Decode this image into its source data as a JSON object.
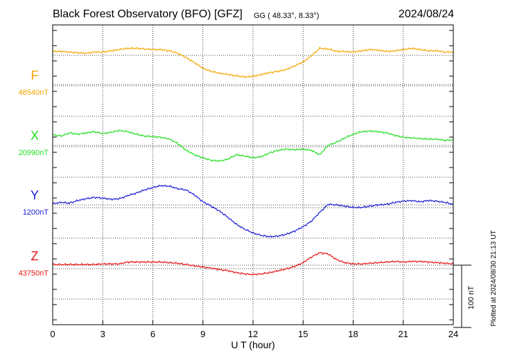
{
  "chart_data": {
    "type": "line",
    "title": "Black Forest Observatory (BFO)  [GFZ]",
    "subtitle": "GG ( 48.33°,   8.33°)",
    "date": "2024/08/24",
    "xlabel": "U T (hour)",
    "xlim": [
      0,
      24
    ],
    "x_ticks": [
      "0",
      "3",
      "6",
      "9",
      "12",
      "15",
      "18",
      "21",
      "24"
    ],
    "grid": true,
    "scale_bar_label": "100 nT",
    "scale_bar_nT": 100,
    "footer": "Plotted at 2024/08/30 21:13 UT",
    "series": [
      {
        "name": "F",
        "baseline_label": "48540nT",
        "baseline_nT": 48540,
        "color": "#f5a500",
        "x": [
          0,
          0.5,
          1,
          1.5,
          2,
          2.5,
          3,
          3.5,
          4,
          4.5,
          5,
          5.5,
          6,
          6.5,
          7,
          7.5,
          8,
          8.5,
          9,
          9.5,
          10,
          10.5,
          11,
          11.5,
          12,
          12.5,
          13,
          13.5,
          14,
          14.5,
          15,
          15.5,
          16,
          16.5,
          17,
          17.5,
          18,
          18.5,
          19,
          19.5,
          20,
          20.5,
          21,
          21.5,
          22,
          22.5,
          23,
          23.5,
          24
        ],
        "values": [
          48593,
          48593,
          48592,
          48591,
          48590,
          48592,
          48592,
          48594,
          48596,
          48598,
          48598,
          48597,
          48596,
          48596,
          48594,
          48590,
          48583,
          48575,
          48566,
          48561,
          48558,
          48556,
          48554,
          48552,
          48553,
          48556,
          48559,
          48561,
          48564,
          48570,
          48576,
          48586,
          48598,
          48597,
          48593,
          48593,
          48592,
          48594,
          48596,
          48595,
          48593,
          48594,
          48596,
          48598,
          48596,
          48594,
          48594,
          48592,
          48592
        ]
      },
      {
        "name": "X",
        "baseline_label": "20990nT",
        "baseline_nT": 20990,
        "color": "#22dd22",
        "x": [
          0,
          0.5,
          1,
          1.5,
          2,
          2.5,
          3,
          3.5,
          4,
          4.5,
          5,
          5.5,
          6,
          6.5,
          7,
          7.5,
          8,
          8.5,
          9,
          9.5,
          10,
          10.5,
          11,
          11.5,
          12,
          12.5,
          13,
          13.5,
          14,
          14.5,
          15,
          15.5,
          16,
          16.5,
          17,
          17.5,
          18,
          18.5,
          19,
          19.5,
          20,
          20.5,
          21,
          21.5,
          22,
          22.5,
          23,
          23.5,
          24
        ],
        "values": [
          21007,
          21005,
          21010,
          21008,
          21010,
          21012,
          21009,
          21011,
          21014,
          21012,
          21008,
          21005,
          21004,
          21003,
          21000,
          20993,
          20982,
          20975,
          20970,
          20966,
          20965,
          20968,
          20975,
          20973,
          20970,
          20972,
          20978,
          20982,
          20984,
          20983,
          20984,
          20982,
          20975,
          20990,
          20995,
          21002,
          21008,
          21012,
          21013,
          21012,
          21010,
          21006,
          21003,
          21002,
          21001,
          21000,
          21000,
          20998,
          20999
        ]
      },
      {
        "name": "Y",
        "baseline_label": "1200nT",
        "baseline_nT": 1200,
        "color": "#1a1ad8",
        "x": [
          0,
          0.5,
          1,
          1.5,
          2,
          2.5,
          3,
          3.5,
          4,
          4.5,
          5,
          5.5,
          6,
          6.5,
          7,
          7.5,
          8,
          8.5,
          9,
          9.5,
          10,
          10.5,
          11,
          11.5,
          12,
          12.5,
          13,
          13.5,
          14,
          14.5,
          15,
          15.5,
          16,
          16.5,
          17,
          17.5,
          18,
          18.5,
          19,
          19.5,
          20,
          20.5,
          21,
          21.5,
          22,
          22.5,
          23,
          23.5,
          24
        ],
        "values": [
          1202,
          1204,
          1203,
          1207,
          1210,
          1212,
          1211,
          1209,
          1210,
          1215,
          1219,
          1224,
          1228,
          1231,
          1230,
          1226,
          1224,
          1216,
          1205,
          1198,
          1190,
          1180,
          1169,
          1161,
          1155,
          1151,
          1149,
          1150,
          1153,
          1158,
          1165,
          1174,
          1188,
          1201,
          1200,
          1198,
          1196,
          1196,
          1198,
          1200,
          1201,
          1204,
          1206,
          1207,
          1205,
          1207,
          1206,
          1204,
          1201
        ]
      },
      {
        "name": "Z",
        "baseline_label": "43750nT",
        "baseline_nT": 43750,
        "color": "#e81414",
        "x": [
          0,
          0.5,
          1,
          1.5,
          2,
          2.5,
          3,
          3.5,
          4,
          4.5,
          5,
          5.5,
          6,
          6.5,
          7,
          7.5,
          8,
          8.5,
          9,
          9.5,
          10,
          10.5,
          11,
          11.5,
          12,
          12.5,
          13,
          13.5,
          14,
          14.5,
          15,
          15.5,
          16,
          16.5,
          17,
          17.5,
          18,
          18.5,
          19,
          19.5,
          20,
          20.5,
          21,
          21.5,
          22,
          22.5,
          23,
          23.5,
          24
        ],
        "values": [
          43751,
          43751,
          43751,
          43751,
          43751,
          43751,
          43752,
          43752,
          43752,
          43755,
          43755,
          43755,
          43755,
          43755,
          43754,
          43753,
          43751,
          43749,
          43747,
          43745,
          43743,
          43741,
          43738,
          43736,
          43735,
          43736,
          43738,
          43741,
          43744,
          43748,
          43754,
          43763,
          43770,
          43768,
          43759,
          43754,
          43752,
          43752,
          43753,
          43754,
          43755,
          43756,
          43755,
          43756,
          43756,
          43755,
          43754,
          43753,
          43752
        ]
      }
    ]
  }
}
